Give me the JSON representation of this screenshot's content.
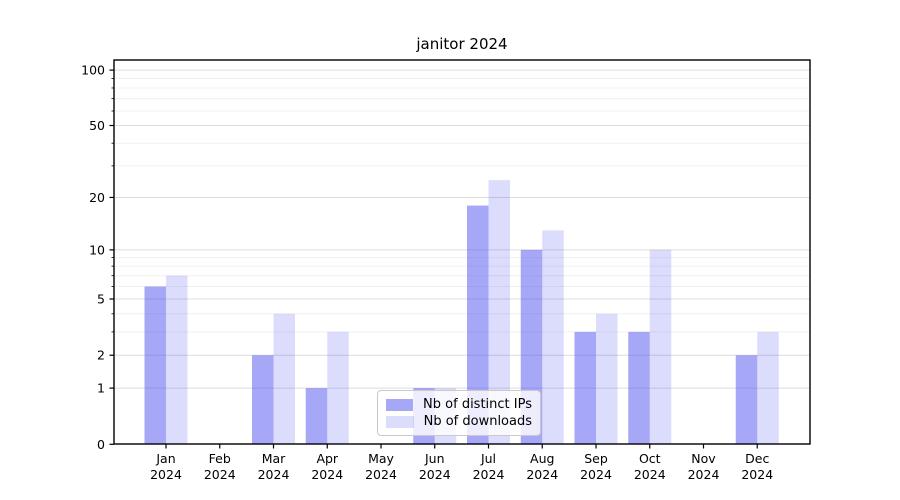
{
  "chart_data": {
    "type": "bar",
    "title": "janitor 2024",
    "categories": [
      {
        "month": "Jan",
        "year": "2024"
      },
      {
        "month": "Feb",
        "year": "2024"
      },
      {
        "month": "Mar",
        "year": "2024"
      },
      {
        "month": "Apr",
        "year": "2024"
      },
      {
        "month": "May",
        "year": "2024"
      },
      {
        "month": "Jun",
        "year": "2024"
      },
      {
        "month": "Jul",
        "year": "2024"
      },
      {
        "month": "Aug",
        "year": "2024"
      },
      {
        "month": "Sep",
        "year": "2024"
      },
      {
        "month": "Oct",
        "year": "2024"
      },
      {
        "month": "Nov",
        "year": "2024"
      },
      {
        "month": "Dec",
        "year": "2024"
      }
    ],
    "series": [
      {
        "name": "Nb of distinct IPs",
        "values": [
          6,
          0,
          2,
          1,
          0,
          1,
          18,
          10,
          3,
          3,
          0,
          2
        ],
        "color": "rgba(80,80,240,0.5)",
        "hex_on_white": "#a8a8f7"
      },
      {
        "name": "Nb of downloads",
        "values": [
          7,
          0,
          4,
          3,
          0,
          1,
          25,
          13,
          4,
          10,
          0,
          3
        ],
        "color": "rgba(80,80,240,0.2)",
        "hex_on_white": "#dcdcfc"
      }
    ],
    "y_axis": {
      "scale": "log10(1+y)",
      "major_ticks": [
        100,
        50,
        20,
        10,
        5,
        2,
        1,
        0
      ],
      "minor_ticks": [
        3,
        4,
        6,
        7,
        8,
        9,
        30,
        40,
        60,
        70,
        80,
        90
      ],
      "ylim": [
        0,
        113
      ]
    },
    "legend": {
      "position": "lower-center"
    },
    "grid": {
      "major_color": "#dcdcdc",
      "minor_color": "#f0f0f0"
    },
    "frame_color": "#000000",
    "background": "#ffffff"
  }
}
